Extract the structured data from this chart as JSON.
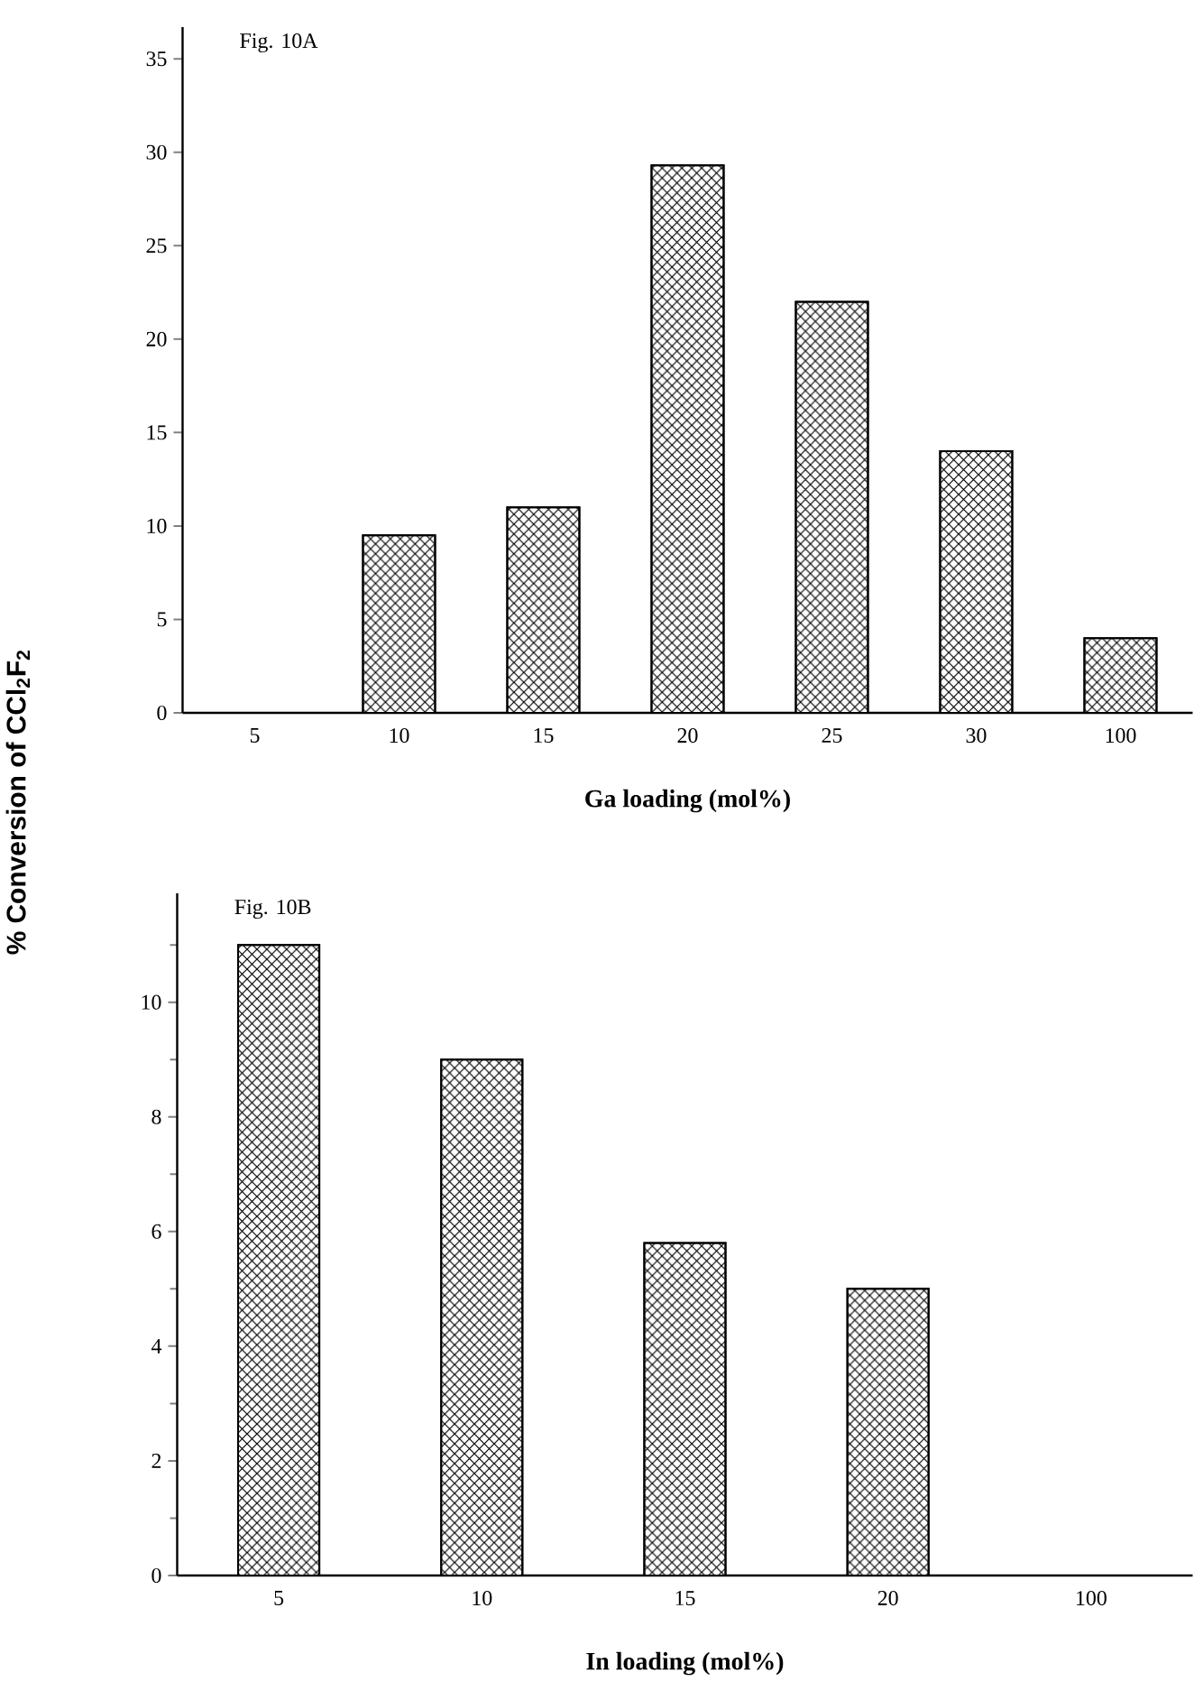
{
  "chart_data": [
    {
      "type": "bar",
      "title": "Fig. 10A",
      "xlabel": "Ga loading (mol%)",
      "ylabel": "% Conversion of CCl$_{2}$F$_{2}$",
      "categories": [
        "5",
        "10",
        "15",
        "20",
        "25",
        "30",
        "100"
      ],
      "values": [
        0,
        9.5,
        11,
        29.3,
        22,
        14,
        4
      ],
      "color": "#000000",
      "ylim": [
        0,
        36.7
      ],
      "yticks": [
        0,
        5,
        10,
        15,
        20,
        25,
        30,
        35
      ]
    },
    {
      "type": "bar",
      "title": "Fig. 10B",
      "xlabel": "In loading (mol%)",
      "categories": [
        "5",
        "10",
        "15",
        "20",
        "100"
      ],
      "values": [
        11,
        9,
        5.8,
        5,
        0
      ],
      "color": "#000000",
      "ylim": [
        0,
        11.9
      ],
      "yticks": [
        0,
        {
          "value": 1,
          "label": null
        },
        2,
        {
          "value": 3,
          "label": null
        },
        4,
        {
          "value": 5,
          "label": null
        },
        6,
        {
          "value": 7,
          "label": null
        },
        8,
        {
          "value": 9,
          "label": null
        },
        10,
        {
          "value": 11,
          "label": null
        }
      ]
    }
  ]
}
